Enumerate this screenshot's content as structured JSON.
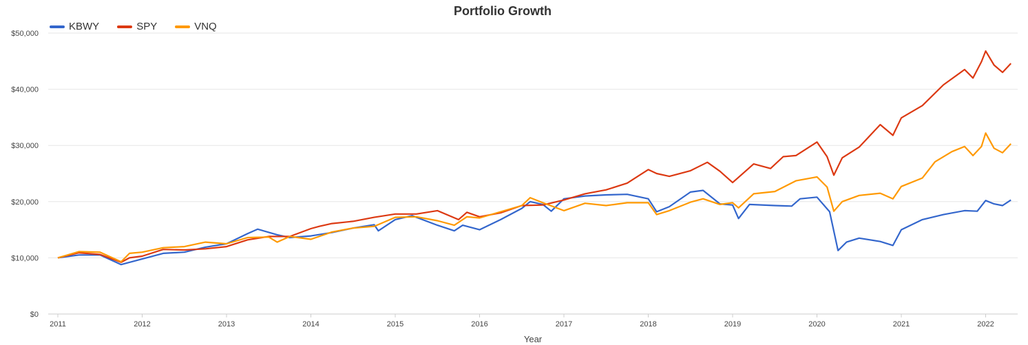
{
  "chart_data": {
    "type": "line",
    "title": "Portfolio Growth",
    "xlabel": "Year",
    "ylabel": "",
    "ylim": [
      0,
      50000
    ],
    "xlim": [
      2011.0,
      2022.4
    ],
    "yticks": [
      0,
      10000,
      20000,
      30000,
      40000,
      50000
    ],
    "ytick_labels": [
      "$0",
      "$10,000",
      "$20,000",
      "$30,000",
      "$40,000",
      "$50,000"
    ],
    "xticks": [
      2011,
      2012,
      2013,
      2014,
      2015,
      2016,
      2017,
      2018,
      2019,
      2020,
      2021,
      2022
    ],
    "xtick_labels": [
      "2011",
      "2012",
      "2013",
      "2014",
      "2015",
      "2016",
      "2017",
      "2018",
      "2019",
      "2020",
      "2021",
      "2022"
    ],
    "grid": true,
    "legend_position": "top-left",
    "series": [
      {
        "name": "KBWY",
        "color": "#3366cc",
        "points": [
          [
            2011.0,
            10000
          ],
          [
            2011.25,
            10500
          ],
          [
            2011.5,
            10500
          ],
          [
            2011.75,
            8800
          ],
          [
            2012.0,
            9800
          ],
          [
            2012.25,
            10800
          ],
          [
            2012.5,
            11000
          ],
          [
            2012.75,
            11900
          ],
          [
            2013.0,
            12500
          ],
          [
            2013.25,
            14300
          ],
          [
            2013.37,
            15100
          ],
          [
            2013.6,
            14100
          ],
          [
            2013.75,
            13600
          ],
          [
            2014.0,
            13900
          ],
          [
            2014.25,
            14500
          ],
          [
            2014.5,
            15300
          ],
          [
            2014.75,
            15900
          ],
          [
            2014.8,
            14800
          ],
          [
            2015.0,
            16800
          ],
          [
            2015.2,
            17500
          ],
          [
            2015.5,
            15800
          ],
          [
            2015.7,
            14800
          ],
          [
            2015.8,
            15800
          ],
          [
            2016.0,
            15000
          ],
          [
            2016.25,
            16800
          ],
          [
            2016.5,
            18800
          ],
          [
            2016.6,
            20000
          ],
          [
            2016.75,
            19500
          ],
          [
            2016.85,
            18300
          ],
          [
            2017.0,
            20500
          ],
          [
            2017.25,
            21000
          ],
          [
            2017.5,
            21200
          ],
          [
            2017.75,
            21300
          ],
          [
            2018.0,
            20500
          ],
          [
            2018.1,
            18200
          ],
          [
            2018.25,
            19100
          ],
          [
            2018.5,
            21700
          ],
          [
            2018.65,
            22000
          ],
          [
            2018.85,
            19600
          ],
          [
            2019.0,
            19400
          ],
          [
            2019.07,
            17000
          ],
          [
            2019.2,
            19500
          ],
          [
            2019.5,
            19300
          ],
          [
            2019.7,
            19200
          ],
          [
            2019.8,
            20500
          ],
          [
            2020.0,
            20800
          ],
          [
            2020.15,
            18200
          ],
          [
            2020.25,
            11300
          ],
          [
            2020.35,
            12800
          ],
          [
            2020.5,
            13500
          ],
          [
            2020.75,
            12900
          ],
          [
            2020.9,
            12200
          ],
          [
            2021.0,
            15000
          ],
          [
            2021.25,
            16800
          ],
          [
            2021.5,
            17700
          ],
          [
            2021.75,
            18400
          ],
          [
            2021.9,
            18300
          ],
          [
            2022.0,
            20200
          ],
          [
            2022.1,
            19600
          ],
          [
            2022.2,
            19300
          ],
          [
            2022.3,
            20300
          ]
        ]
      },
      {
        "name": "SPY",
        "color": "#dc3912",
        "points": [
          [
            2011.0,
            10000
          ],
          [
            2011.25,
            10900
          ],
          [
            2011.5,
            10600
          ],
          [
            2011.75,
            9200
          ],
          [
            2011.85,
            10000
          ],
          [
            2012.0,
            10300
          ],
          [
            2012.25,
            11500
          ],
          [
            2012.5,
            11400
          ],
          [
            2012.75,
            11600
          ],
          [
            2013.0,
            12000
          ],
          [
            2013.25,
            13200
          ],
          [
            2013.5,
            13800
          ],
          [
            2013.75,
            13800
          ],
          [
            2014.0,
            15200
          ],
          [
            2014.1,
            15600
          ],
          [
            2014.25,
            16100
          ],
          [
            2014.5,
            16500
          ],
          [
            2014.75,
            17200
          ],
          [
            2015.0,
            17800
          ],
          [
            2015.25,
            17800
          ],
          [
            2015.5,
            18400
          ],
          [
            2015.75,
            16800
          ],
          [
            2015.85,
            18100
          ],
          [
            2016.0,
            17300
          ],
          [
            2016.25,
            18000
          ],
          [
            2016.5,
            19300
          ],
          [
            2016.75,
            19400
          ],
          [
            2017.0,
            20300
          ],
          [
            2017.25,
            21400
          ],
          [
            2017.5,
            22100
          ],
          [
            2017.75,
            23300
          ],
          [
            2018.0,
            25700
          ],
          [
            2018.1,
            25000
          ],
          [
            2018.25,
            24500
          ],
          [
            2018.5,
            25500
          ],
          [
            2018.7,
            27000
          ],
          [
            2018.85,
            25400
          ],
          [
            2019.0,
            23400
          ],
          [
            2019.25,
            26700
          ],
          [
            2019.45,
            25900
          ],
          [
            2019.6,
            28000
          ],
          [
            2019.75,
            28200
          ],
          [
            2020.0,
            30600
          ],
          [
            2020.12,
            28000
          ],
          [
            2020.2,
            24700
          ],
          [
            2020.3,
            27800
          ],
          [
            2020.5,
            29700
          ],
          [
            2020.75,
            33700
          ],
          [
            2020.9,
            31800
          ],
          [
            2021.0,
            34900
          ],
          [
            2021.25,
            37100
          ],
          [
            2021.5,
            40800
          ],
          [
            2021.75,
            43500
          ],
          [
            2021.85,
            42000
          ],
          [
            2021.95,
            44900
          ],
          [
            2022.0,
            46800
          ],
          [
            2022.1,
            44300
          ],
          [
            2022.2,
            43000
          ],
          [
            2022.3,
            44600
          ]
        ]
      },
      {
        "name": "VNQ",
        "color": "#ff9900",
        "points": [
          [
            2011.0,
            10000
          ],
          [
            2011.25,
            11100
          ],
          [
            2011.5,
            11000
          ],
          [
            2011.75,
            9300
          ],
          [
            2011.85,
            10800
          ],
          [
            2012.0,
            11000
          ],
          [
            2012.25,
            11800
          ],
          [
            2012.5,
            12000
          ],
          [
            2012.75,
            12800
          ],
          [
            2013.0,
            12500
          ],
          [
            2013.25,
            13600
          ],
          [
            2013.5,
            13700
          ],
          [
            2013.6,
            12800
          ],
          [
            2013.75,
            13800
          ],
          [
            2014.0,
            13300
          ],
          [
            2014.25,
            14600
          ],
          [
            2014.5,
            15300
          ],
          [
            2014.75,
            15600
          ],
          [
            2015.0,
            17200
          ],
          [
            2015.25,
            17300
          ],
          [
            2015.5,
            16600
          ],
          [
            2015.7,
            15800
          ],
          [
            2015.85,
            17300
          ],
          [
            2016.0,
            17100
          ],
          [
            2016.25,
            18200
          ],
          [
            2016.5,
            19300
          ],
          [
            2016.6,
            20700
          ],
          [
            2016.75,
            19800
          ],
          [
            2017.0,
            18400
          ],
          [
            2017.25,
            19700
          ],
          [
            2017.5,
            19300
          ],
          [
            2017.75,
            19800
          ],
          [
            2018.0,
            19800
          ],
          [
            2018.1,
            17700
          ],
          [
            2018.25,
            18400
          ],
          [
            2018.5,
            19900
          ],
          [
            2018.65,
            20500
          ],
          [
            2018.85,
            19500
          ],
          [
            2019.0,
            19800
          ],
          [
            2019.07,
            18900
          ],
          [
            2019.25,
            21400
          ],
          [
            2019.5,
            21800
          ],
          [
            2019.75,
            23700
          ],
          [
            2020.0,
            24400
          ],
          [
            2020.12,
            22600
          ],
          [
            2020.2,
            18300
          ],
          [
            2020.3,
            20000
          ],
          [
            2020.5,
            21100
          ],
          [
            2020.75,
            21500
          ],
          [
            2020.9,
            20500
          ],
          [
            2021.0,
            22700
          ],
          [
            2021.25,
            24200
          ],
          [
            2021.4,
            27100
          ],
          [
            2021.6,
            28900
          ],
          [
            2021.75,
            29800
          ],
          [
            2021.85,
            28200
          ],
          [
            2021.95,
            29800
          ],
          [
            2022.0,
            32200
          ],
          [
            2022.1,
            29500
          ],
          [
            2022.2,
            28700
          ],
          [
            2022.3,
            30300
          ]
        ]
      }
    ]
  }
}
